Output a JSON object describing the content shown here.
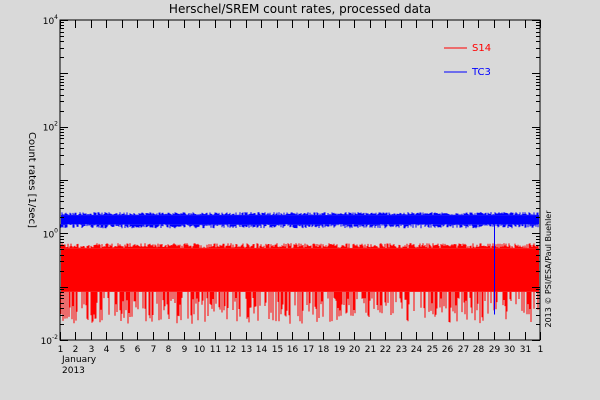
{
  "chart_data": {
    "type": "line",
    "title": "Herschel/SREM count rates, processed data",
    "ylabel": "Count rates [1/sec]",
    "xlabel_lines": [
      "January",
      "2013"
    ],
    "y_scale": "log",
    "ylim": [
      0.01,
      10000
    ],
    "y_ticks": [
      {
        "value": 10000,
        "base": "10",
        "exp": "4"
      },
      {
        "value": 1000,
        "base": "10",
        "exp": "3"
      },
      {
        "value": 100,
        "base": "10",
        "exp": "2"
      },
      {
        "value": 10,
        "base": "10",
        "exp": "1"
      },
      {
        "value": 1,
        "base": "10",
        "exp": "0"
      },
      {
        "value": 0.1,
        "base": "10",
        "exp": "-1"
      },
      {
        "value": 0.01,
        "base": "10",
        "exp": "-2"
      }
    ],
    "y_tick_labels_shown": [
      {
        "value": 10000,
        "base": "10",
        "exp": "4"
      },
      {
        "value": 100,
        "base": "10",
        "exp": "2"
      },
      {
        "value": 1,
        "base": "10",
        "exp": "0"
      },
      {
        "value": 0.01,
        "base": "10",
        "exp": "-2"
      }
    ],
    "xlim": [
      1,
      32
    ],
    "x_tick_labels": [
      "1",
      "2",
      "3",
      "4",
      "5",
      "6",
      "7",
      "8",
      "9",
      "10",
      "11",
      "12",
      "13",
      "14",
      "15",
      "16",
      "17",
      "18",
      "19",
      "20",
      "21",
      "22",
      "23",
      "24",
      "25",
      "26",
      "27",
      "28",
      "29",
      "30",
      "31",
      "1"
    ],
    "series": [
      {
        "name": "S14",
        "color": "#ff0000",
        "y_high": 0.6,
        "y_low": 0.08,
        "y_floor": 0.02
      },
      {
        "name": "TC3",
        "color": "#0000ff",
        "y_high": 2.5,
        "y_low": 1.3,
        "spike_day": 29.05,
        "spike_min": 0.03
      }
    ],
    "legend_placement": "top-right",
    "grid": false,
    "credit": "2013 © PSI/ESA/Paul Buehler"
  }
}
